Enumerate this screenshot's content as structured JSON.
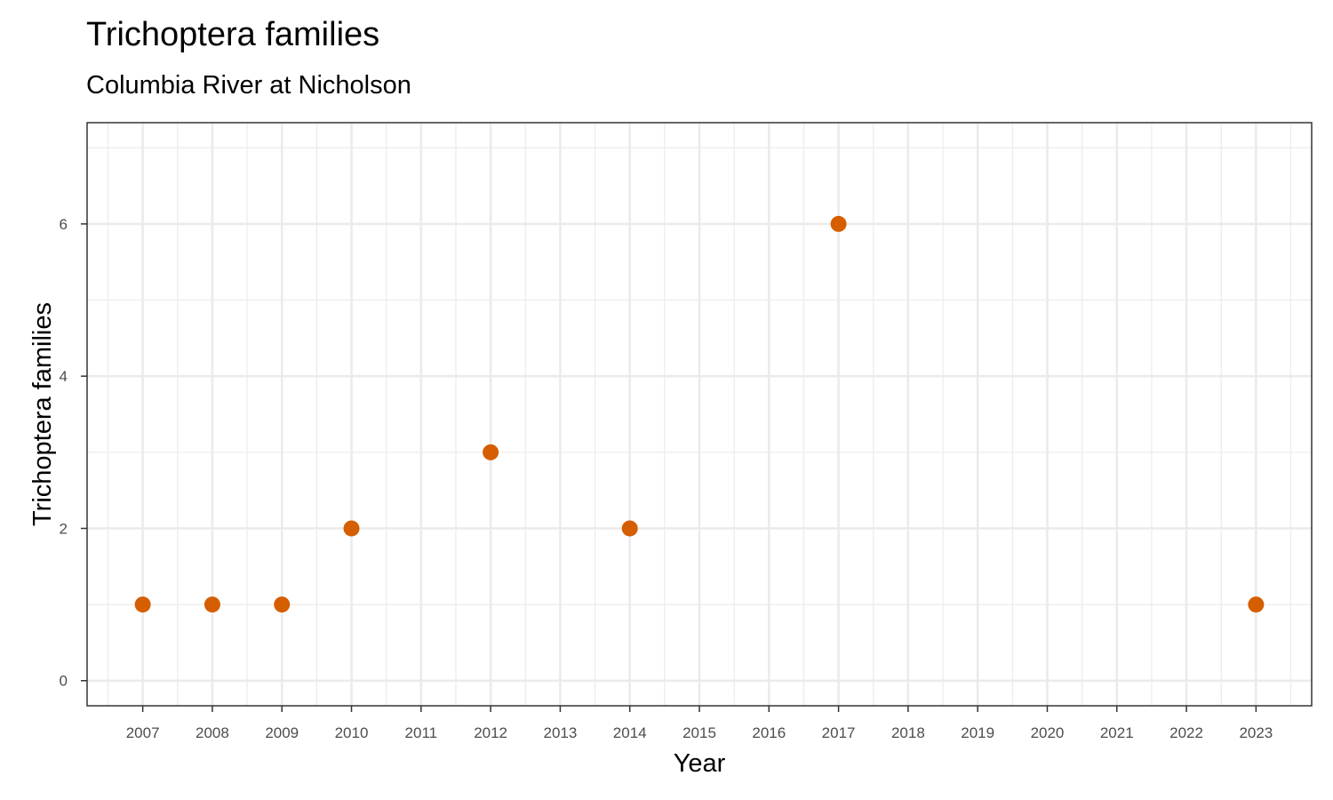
{
  "chart_data": {
    "type": "scatter",
    "title": "Trichoptera families",
    "subtitle": "Columbia River at Nicholson",
    "xlabel": "Year",
    "ylabel": "Trichoptera families",
    "x": [
      2007,
      2008,
      2009,
      2010,
      2012,
      2014,
      2017,
      2023
    ],
    "y": [
      1,
      1,
      1,
      2,
      3,
      2,
      6,
      1
    ],
    "xlim": [
      2006.2,
      2023.8
    ],
    "ylim": [
      -0.33,
      7.33
    ],
    "xticks": [
      "2007",
      "2008",
      "2009",
      "2010",
      "2011",
      "2012",
      "2013",
      "2014",
      "2015",
      "2016",
      "2017",
      "2018",
      "2019",
      "2020",
      "2021",
      "2022",
      "2023"
    ],
    "yticks": [
      "0",
      "2",
      "4",
      "6"
    ],
    "grid": true,
    "legend": "none",
    "point_color": "#D55E00",
    "grid_color": "#ebebeb",
    "panel_border_color": "#333333"
  }
}
